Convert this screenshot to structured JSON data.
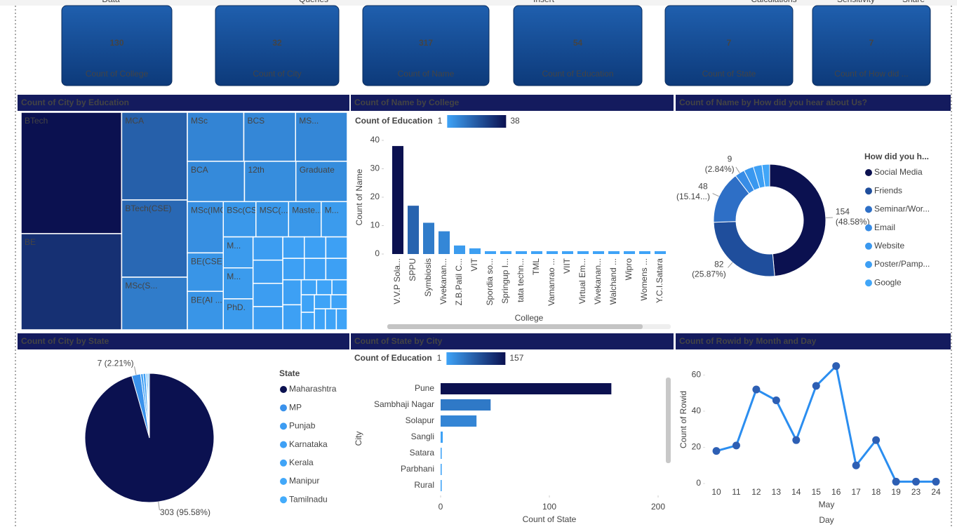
{
  "ribbon": [
    "Data",
    "Queries",
    "Insert",
    "Calculations",
    "Sensitivity",
    "Share"
  ],
  "cards": [
    {
      "value": 130,
      "label": "Count of College"
    },
    {
      "value": 32,
      "label": "Count of City"
    },
    {
      "value": 317,
      "label": "Count of Name"
    },
    {
      "value": 54,
      "label": "Count of Education"
    },
    {
      "value": 7,
      "label": "Count of State"
    },
    {
      "value": 7,
      "label": "Count of How did ..."
    }
  ],
  "chart_data": [
    {
      "type": "treemap",
      "title": "Count of City by Education",
      "categories": [
        "BTech",
        "BE",
        "MCA",
        "BTech(CSE)",
        "MSc(S...",
        "MSc",
        "BCS",
        "MS...",
        "BCA",
        "12th",
        "Graduate",
        "MSc(IMCA)",
        "BE(CSE)",
        "BE(AI ...",
        "BSc(CS)",
        "MSC(...",
        "Maste...",
        "M...",
        "M...",
        "M...",
        "PhD.",
        null,
        null,
        null,
        null,
        null,
        null,
        null,
        null,
        null,
        null,
        null,
        null,
        null,
        null,
        null,
        null,
        null,
        null,
        null,
        null,
        null,
        null
      ],
      "values": [
        53,
        42,
        25,
        22,
        15,
        12,
        11,
        11,
        10,
        9,
        9,
        8,
        6,
        6,
        5,
        5,
        5,
        4,
        4,
        4,
        4,
        3,
        3,
        3,
        3,
        2,
        2,
        2,
        2,
        2,
        2,
        2,
        2,
        1,
        1,
        1,
        1,
        1,
        1,
        1,
        1,
        1,
        1
      ],
      "colors": [
        "#3ea3f7",
        "#0b1150"
      ]
    },
    {
      "type": "bar",
      "title": "Count of Name by College",
      "categories": [
        "V.V.P Sola...",
        "SPPU",
        "Symbiosis",
        "Vivekanan...",
        "Z.B.Patil C...",
        "VIT",
        "Spordia so...",
        "Springup I...",
        "tata techn...",
        "TML",
        "Vamanrao ...",
        "VIIT",
        "Virtual Em...",
        "Vivekanan...",
        "Walchand ...",
        "Wipro",
        "Womens ...",
        "Y.C.I.Satara"
      ],
      "values": [
        38,
        17,
        11,
        8,
        3,
        2,
        1,
        1,
        1,
        1,
        1,
        1,
        1,
        1,
        1,
        1,
        1,
        1
      ],
      "ylim": [
        0,
        40
      ],
      "yticks": [
        0,
        10,
        20,
        30,
        40
      ],
      "xlabel": "College",
      "ylabel": "Count of Name",
      "color_scale": {
        "title": "Count of Education",
        "min": 1,
        "max": 38,
        "colors": [
          "#3ea3f7",
          "#0b1150"
        ]
      }
    },
    {
      "type": "donut",
      "title": "Count of Name by How did you hear about Us?",
      "legend_title": "How did you h...",
      "categories": [
        "Social Media",
        "Friends",
        "Seminar/Wor...",
        "Email",
        "Website",
        "Poster/Pamp...",
        "Google"
      ],
      "values": [
        154,
        82,
        48,
        9,
        9,
        8,
        7
      ],
      "value_labels": [
        "154 (48.58%)",
        "82 (25.87%)",
        "48 (15.14...)",
        "9 (2.84%)",
        null,
        null,
        null
      ],
      "colors": [
        "#0b1150",
        "#1f4e9c",
        "#2e6fc6",
        "#378ce6",
        "#3a98ef",
        "#3d9ff4",
        "#41a6f8"
      ]
    },
    {
      "type": "pie",
      "title": "Count of City by State",
      "legend_title": "State",
      "categories": [
        "Maharashtra",
        "MP",
        "Punjab",
        "Karnataka",
        "Kerala",
        "Manipur",
        "Tamilnadu"
      ],
      "values": [
        303,
        7,
        2,
        2,
        1,
        1,
        1
      ],
      "value_labels": [
        "303 (95.58%)",
        "7 (2.21%)",
        null,
        null,
        null,
        null,
        null
      ],
      "colors": [
        "#0b1150",
        "#3a92ec",
        "#3c9cf2",
        "#3ea0f5",
        "#40a4f7",
        "#42a8f9",
        "#44acfb"
      ]
    },
    {
      "type": "bar",
      "horizontal": true,
      "title": "Count of State by City",
      "categories": [
        "Pune",
        "Sambhaji Nagar",
        "Solapur",
        "Sangli",
        "Satara",
        "Parbhani",
        "Rural"
      ],
      "values": [
        157,
        46,
        33,
        2,
        1,
        1,
        1
      ],
      "xlim": [
        0,
        200
      ],
      "xticks": [
        0,
        100,
        200
      ],
      "xlabel": "Count of State",
      "ylabel": "City",
      "color_scale": {
        "title": "Count of Education",
        "min": 1,
        "max": 157,
        "colors": [
          "#3ea3f7",
          "#0b1150"
        ]
      }
    },
    {
      "type": "line",
      "title": "Count of Rowid by Month and Day",
      "categories": [
        "10",
        "11",
        "12",
        "13",
        "14",
        "15",
        "16",
        "17",
        "18",
        "19",
        "23",
        "24"
      ],
      "values": [
        18,
        21,
        52,
        46,
        24,
        54,
        65,
        10,
        24,
        1,
        1,
        1
      ],
      "ylim": [
        0,
        66
      ],
      "yticks": [
        0,
        20,
        40,
        60
      ],
      "x_group": "May",
      "xlabel": "Day",
      "ylabel": "Count of Rowid",
      "color": "#2b8ef0",
      "marker_color": "#2d5fb4"
    }
  ]
}
